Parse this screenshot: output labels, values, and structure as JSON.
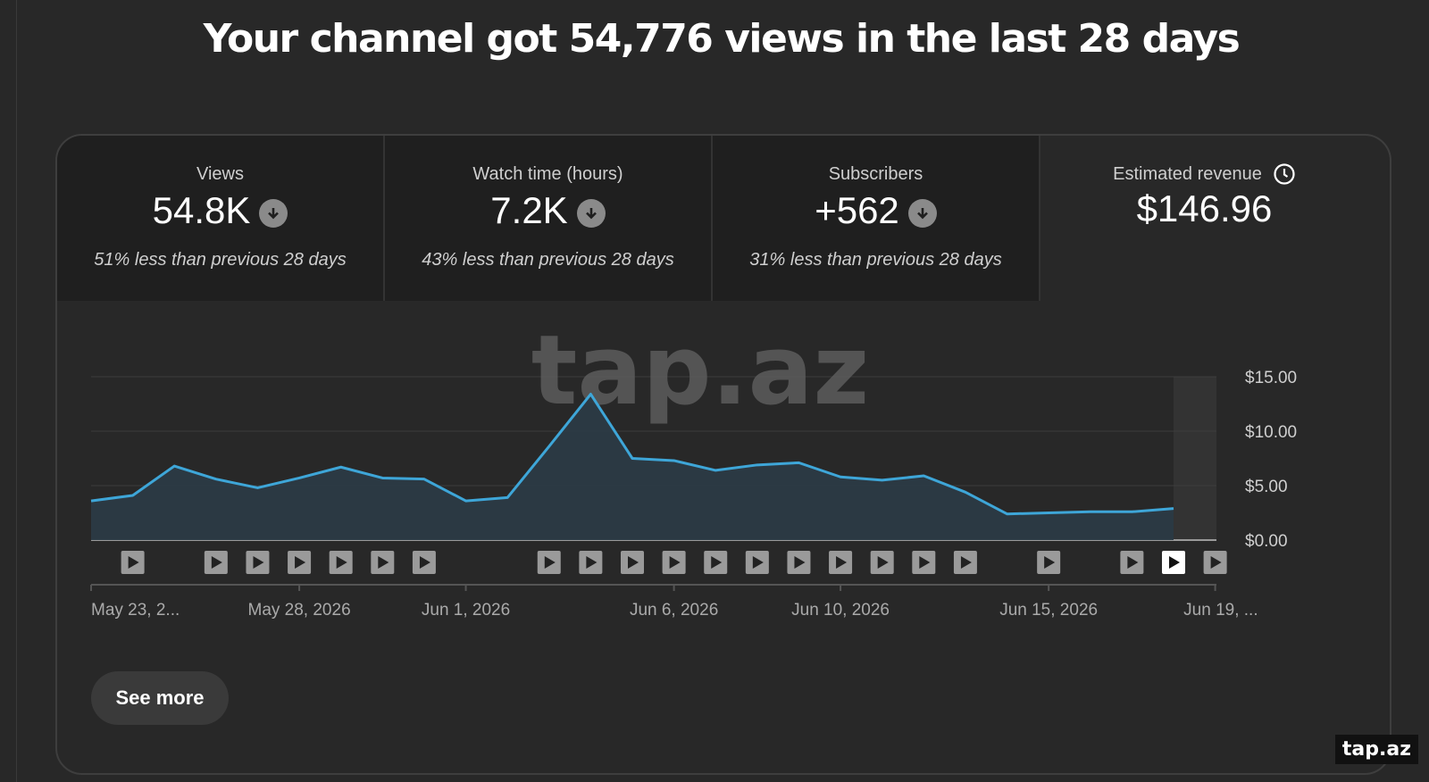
{
  "headline": "Your channel got 54,776 views in the last 28 days",
  "tabs": [
    {
      "label": "Views",
      "value": "54.8K",
      "sub": "51% less than previous 28 days",
      "trend_icon": "arrow-down-icon"
    },
    {
      "label": "Watch time (hours)",
      "value": "7.2K",
      "sub": "43% less than previous 28 days",
      "trend_icon": "arrow-down-icon"
    },
    {
      "label": "Subscribers",
      "value": "+562",
      "sub": "31% less than previous 28 days",
      "trend_icon": "arrow-down-icon"
    },
    {
      "label": "Estimated revenue",
      "value": "$146.96",
      "info_icon": "clock-icon",
      "selected": true
    }
  ],
  "chart_data": {
    "type": "area",
    "ylabel": "",
    "ylim": [
      0,
      15
    ],
    "yticks": [
      "$15.00",
      "$10.00",
      "$5.00",
      "$0.00"
    ],
    "ytick_values": [
      15,
      10,
      5,
      0
    ],
    "series": [
      {
        "values": [
          3.6,
          4.1,
          6.8,
          5.6,
          4.8,
          5.7,
          6.7,
          5.7,
          5.6,
          3.6,
          3.9,
          8.6,
          13.4,
          7.5,
          7.3,
          6.4,
          6.9,
          7.1,
          5.8,
          5.5,
          5.9,
          4.4,
          2.4,
          2.5,
          2.6,
          2.6,
          2.9
        ]
      }
    ],
    "xtick_labels": [
      "May 23, 2...",
      "May 28, 2026",
      "Jun 1, 2026",
      "Jun 6, 2026",
      "Jun 10, 2026",
      "Jun 15, 2026",
      "Jun 19, ..."
    ],
    "xtick_positions": [
      0,
      5,
      9,
      14,
      18,
      23,
      27
    ],
    "upload_markers": [
      1,
      3,
      4,
      5,
      6,
      7,
      8,
      11,
      12,
      13,
      14,
      15,
      16,
      17,
      18,
      19,
      20,
      21,
      23,
      25,
      26,
      27
    ],
    "line_color": "#3ea6d8",
    "fill_color": "#2b3a44",
    "grid": true
  },
  "watermark": "tap.az",
  "see_more_label": "See more",
  "corner_brand": "tap.az"
}
